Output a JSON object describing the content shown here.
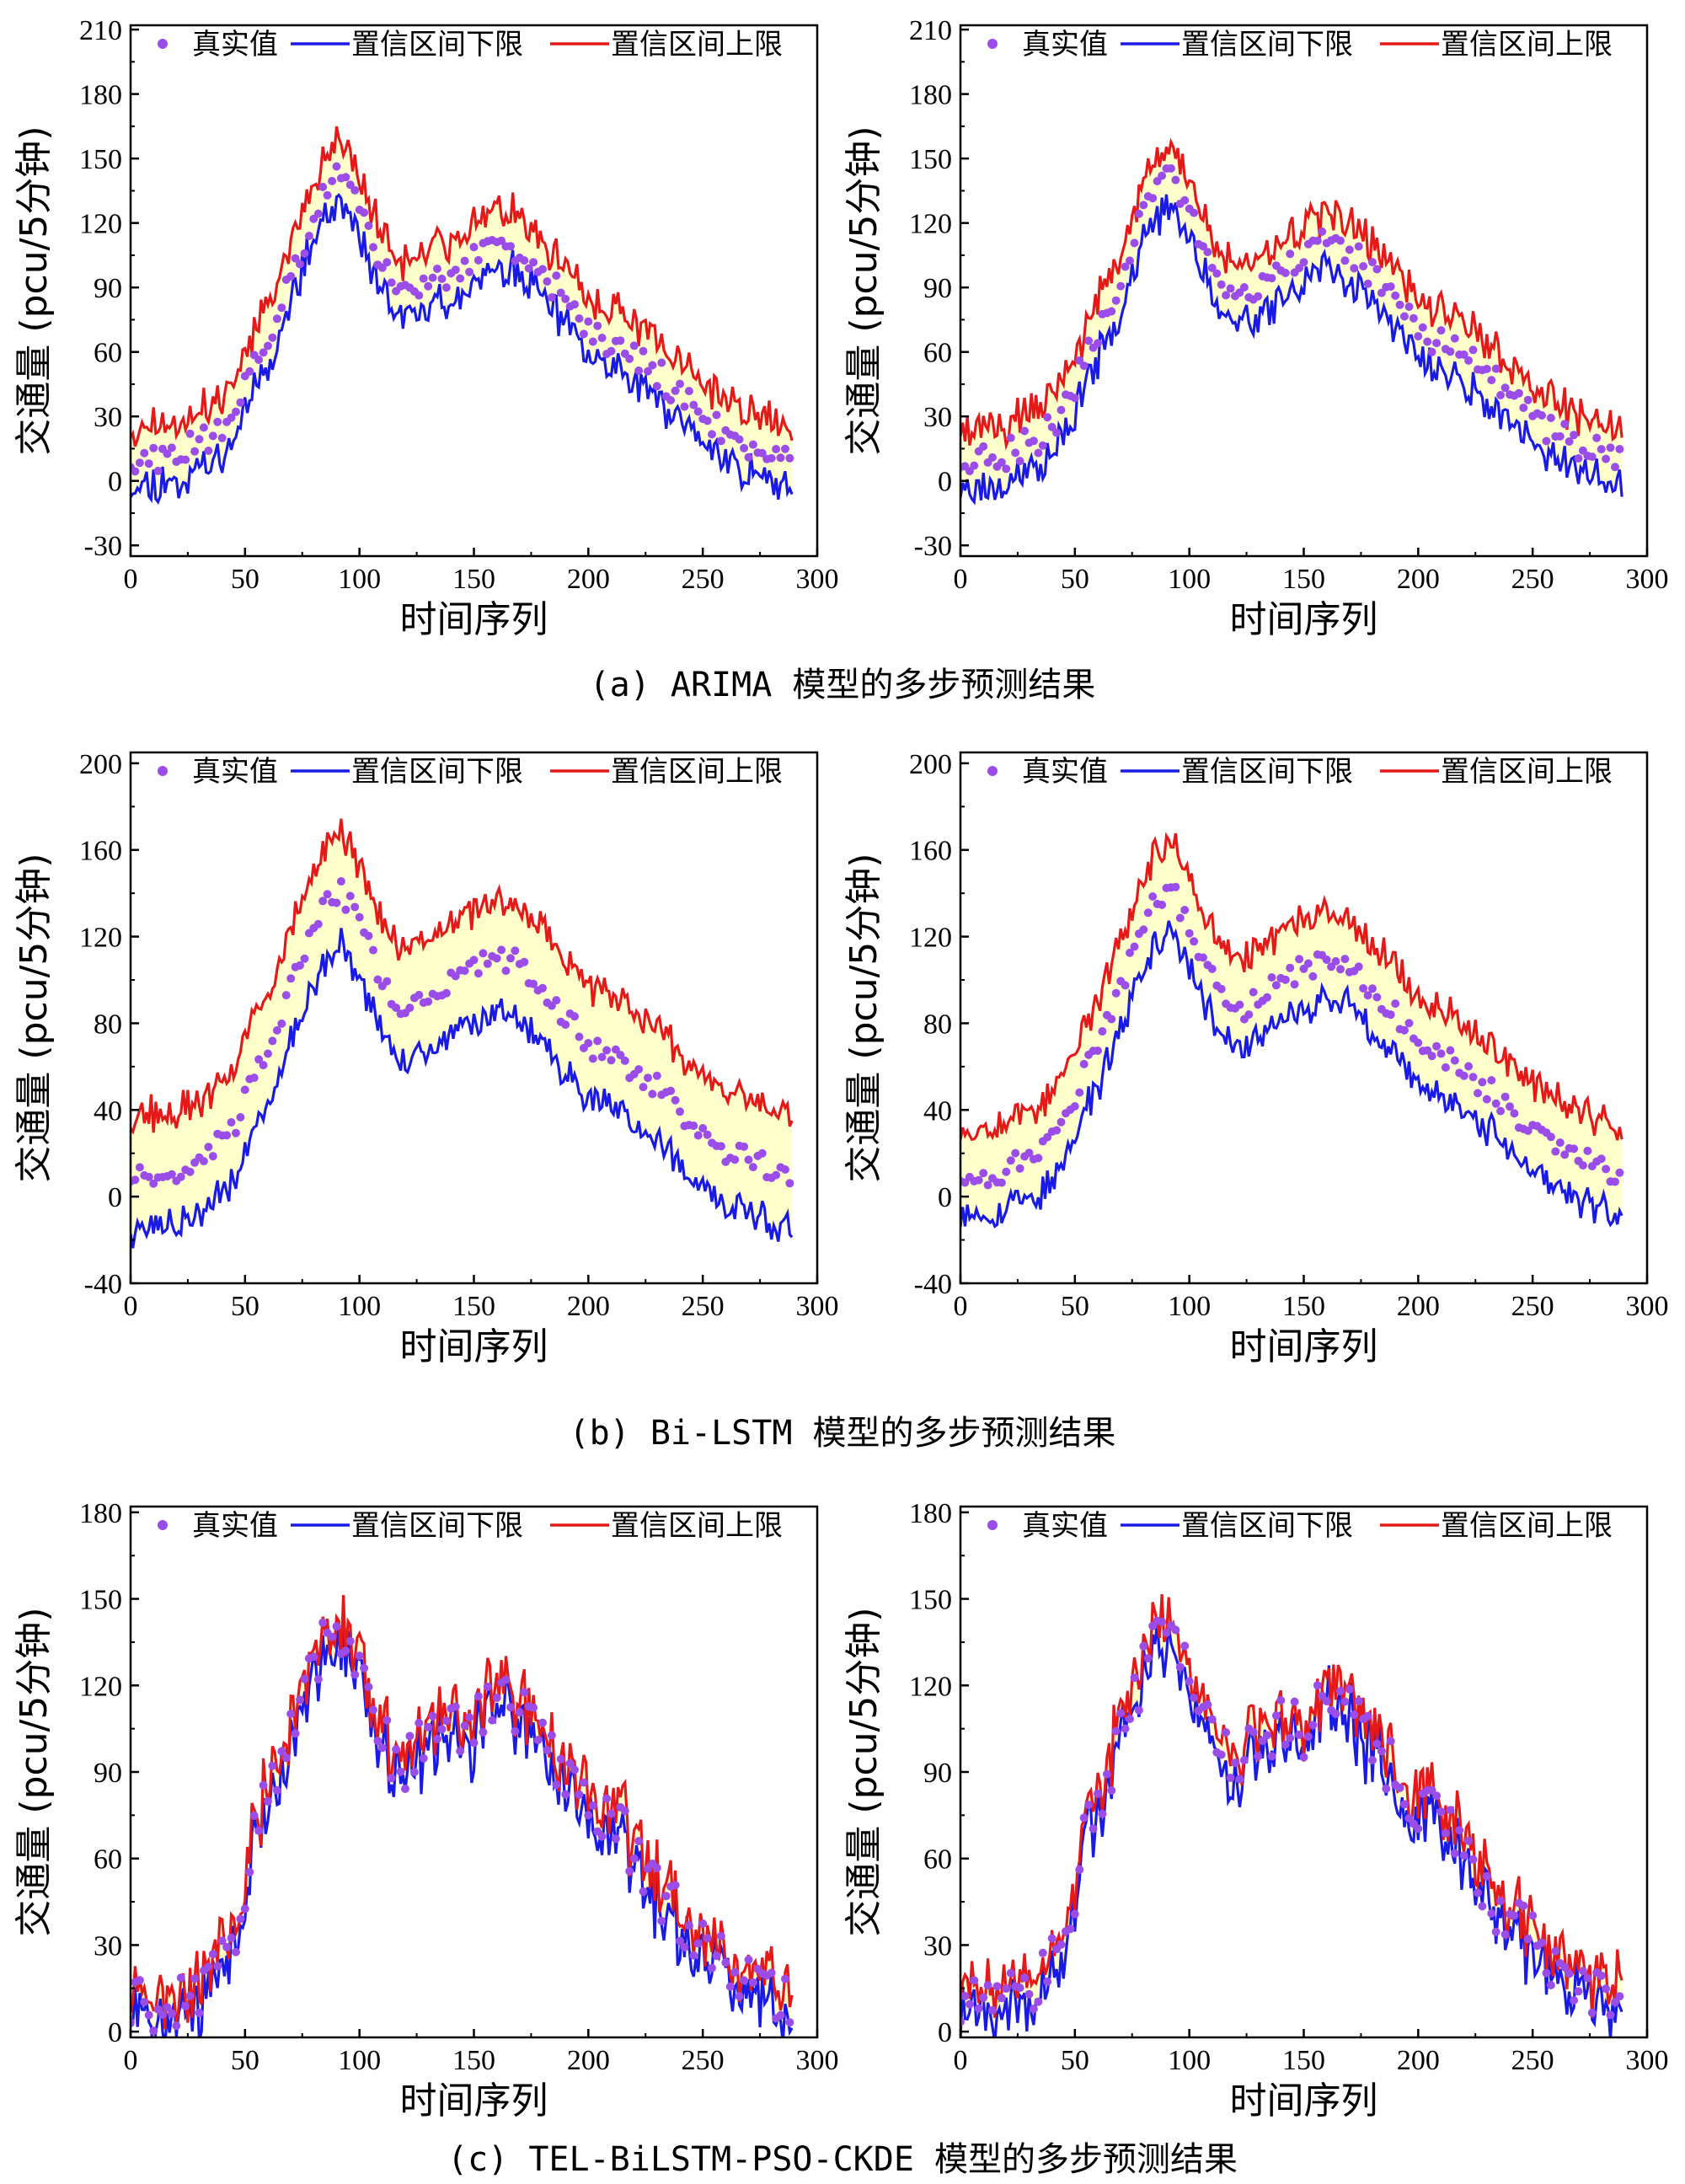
{
  "colors": {
    "actual": "#9b4dea",
    "lower": "#1a1ae6",
    "upper": "#e61919",
    "band": "#ffffcc"
  },
  "legend": {
    "actual": "真实值",
    "lower": "置信区间下限",
    "upper": "置信区间上限"
  },
  "captions": [
    "(a) ARIMA 模型的多步预测结果",
    "(b) Bi-LSTM 模型的多步预测结果",
    "(c) TEL-BiLSTM-PSO-CKDE 模型的多步预测结果"
  ],
  "chart_data": [
    {
      "id": "a-left",
      "type": "line",
      "model": "ARIMA",
      "xlabel": "时间序列",
      "ylabel": "交通量 (pcu/5分钟)",
      "xlim": [
        0,
        300
      ],
      "xticks": [
        0,
        50,
        100,
        150,
        200,
        250,
        300
      ],
      "ylim": [
        -35,
        212
      ],
      "yticks": [
        -30,
        0,
        30,
        60,
        90,
        120,
        150,
        180,
        210
      ],
      "n_points": 290,
      "actual_profile": [
        [
          0,
          10
        ],
        [
          20,
          12
        ],
        [
          35,
          20
        ],
        [
          45,
          32
        ],
        [
          55,
          58
        ],
        [
          65,
          80
        ],
        [
          75,
          110
        ],
        [
          85,
          135
        ],
        [
          92,
          142
        ],
        [
          100,
          125
        ],
        [
          110,
          100
        ],
        [
          120,
          85
        ],
        [
          135,
          95
        ],
        [
          150,
          105
        ],
        [
          160,
          110
        ],
        [
          170,
          108
        ],
        [
          185,
          90
        ],
        [
          200,
          70
        ],
        [
          215,
          62
        ],
        [
          230,
          50
        ],
        [
          245,
          35
        ],
        [
          260,
          22
        ],
        [
          275,
          15
        ],
        [
          290,
          8
        ]
      ],
      "lower_offset": -12,
      "upper_offset": 15,
      "noise": 7,
      "seed": 11,
      "legend": {
        "actual": "真实值",
        "lower": "置信区间下限",
        "upper": "置信区间上限"
      }
    },
    {
      "id": "a-right",
      "type": "line",
      "model": "ARIMA",
      "xlabel": "时间序列",
      "ylabel": "交通量 (pcu/5分钟)",
      "xlim": [
        0,
        300
      ],
      "xticks": [
        0,
        50,
        100,
        150,
        200,
        250,
        300
      ],
      "ylim": [
        -35,
        212
      ],
      "yticks": [
        -30,
        0,
        30,
        60,
        90,
        120,
        150,
        180,
        210
      ],
      "n_points": 290,
      "actual_profile": [
        [
          0,
          10
        ],
        [
          20,
          12
        ],
        [
          35,
          20
        ],
        [
          45,
          32
        ],
        [
          55,
          58
        ],
        [
          65,
          80
        ],
        [
          75,
          110
        ],
        [
          85,
          135
        ],
        [
          92,
          142
        ],
        [
          100,
          125
        ],
        [
          110,
          100
        ],
        [
          120,
          85
        ],
        [
          135,
          95
        ],
        [
          150,
          105
        ],
        [
          160,
          110
        ],
        [
          170,
          108
        ],
        [
          185,
          90
        ],
        [
          200,
          70
        ],
        [
          215,
          62
        ],
        [
          230,
          50
        ],
        [
          245,
          35
        ],
        [
          260,
          22
        ],
        [
          275,
          15
        ],
        [
          290,
          8
        ]
      ],
      "lower_offset": -13,
      "upper_offset": 14,
      "noise": 7,
      "seed": 23,
      "legend": {
        "actual": "真实值",
        "lower": "置信区间下限",
        "upper": "置信区间上限"
      }
    },
    {
      "id": "b-left",
      "type": "line",
      "model": "Bi-LSTM",
      "xlabel": "时间序列",
      "ylabel": "交通量 (pcu/5分钟)",
      "xlim": [
        0,
        300
      ],
      "xticks": [
        0,
        50,
        100,
        150,
        200,
        250,
        300
      ],
      "ylim": [
        -40,
        205
      ],
      "yticks": [
        -40,
        0,
        40,
        80,
        120,
        160,
        200
      ],
      "n_points": 290,
      "actual_profile": [
        [
          0,
          10
        ],
        [
          20,
          12
        ],
        [
          35,
          20
        ],
        [
          45,
          32
        ],
        [
          55,
          58
        ],
        [
          65,
          80
        ],
        [
          75,
          110
        ],
        [
          85,
          135
        ],
        [
          92,
          142
        ],
        [
          100,
          125
        ],
        [
          110,
          100
        ],
        [
          120,
          85
        ],
        [
          135,
          95
        ],
        [
          150,
          105
        ],
        [
          160,
          110
        ],
        [
          170,
          108
        ],
        [
          185,
          90
        ],
        [
          200,
          70
        ],
        [
          215,
          62
        ],
        [
          230,
          50
        ],
        [
          245,
          35
        ],
        [
          260,
          22
        ],
        [
          275,
          15
        ],
        [
          290,
          8
        ]
      ],
      "lower_offset": -25,
      "upper_offset": 27,
      "noise": 6,
      "seed": 37,
      "legend": {
        "actual": "真实值",
        "lower": "置信区间下限",
        "upper": "置信区间上限"
      }
    },
    {
      "id": "b-right",
      "type": "line",
      "model": "Bi-LSTM",
      "xlabel": "时间序列",
      "ylabel": "交通量 (pcu/5分钟)",
      "xlim": [
        0,
        300
      ],
      "xticks": [
        0,
        50,
        100,
        150,
        200,
        250,
        300
      ],
      "ylim": [
        -40,
        205
      ],
      "yticks": [
        -40,
        0,
        40,
        80,
        120,
        160,
        200
      ],
      "n_points": 290,
      "actual_profile": [
        [
          0,
          10
        ],
        [
          20,
          12
        ],
        [
          35,
          20
        ],
        [
          45,
          32
        ],
        [
          55,
          58
        ],
        [
          65,
          80
        ],
        [
          75,
          110
        ],
        [
          85,
          135
        ],
        [
          92,
          142
        ],
        [
          100,
          125
        ],
        [
          110,
          100
        ],
        [
          120,
          85
        ],
        [
          135,
          95
        ],
        [
          150,
          105
        ],
        [
          160,
          110
        ],
        [
          170,
          108
        ],
        [
          185,
          90
        ],
        [
          200,
          70
        ],
        [
          215,
          62
        ],
        [
          230,
          50
        ],
        [
          245,
          35
        ],
        [
          260,
          22
        ],
        [
          275,
          15
        ],
        [
          290,
          8
        ]
      ],
      "lower_offset": -18,
      "upper_offset": 22,
      "noise": 6,
      "seed": 53,
      "legend": {
        "actual": "真实值",
        "lower": "置信区间下限",
        "upper": "置信区间上限"
      }
    },
    {
      "id": "c-left",
      "type": "line",
      "model": "TEL-BiLSTM-PSO-CKDE",
      "xlabel": "时间序列",
      "ylabel": "交通量 (pcu/5分钟)",
      "xlim": [
        0,
        300
      ],
      "xticks": [
        0,
        50,
        100,
        150,
        200,
        250,
        300
      ],
      "ylim": [
        -2,
        182
      ],
      "yticks": [
        0,
        30,
        60,
        90,
        120,
        150,
        180
      ],
      "n_points": 290,
      "actual_profile": [
        [
          0,
          8
        ],
        [
          20,
          10
        ],
        [
          35,
          18
        ],
        [
          45,
          30
        ],
        [
          55,
          70
        ],
        [
          65,
          90
        ],
        [
          75,
          115
        ],
        [
          85,
          135
        ],
        [
          92,
          140
        ],
        [
          100,
          125
        ],
        [
          110,
          100
        ],
        [
          120,
          92
        ],
        [
          135,
          105
        ],
        [
          150,
          105
        ],
        [
          160,
          118
        ],
        [
          170,
          110
        ],
        [
          185,
          95
        ],
        [
          200,
          78
        ],
        [
          215,
          70
        ],
        [
          230,
          48
        ],
        [
          245,
          35
        ],
        [
          260,
          22
        ],
        [
          275,
          15
        ],
        [
          290,
          10
        ]
      ],
      "lower_offset": -4,
      "upper_offset": 4,
      "noise": 10,
      "seed": 71,
      "legend": {
        "actual": "真实值",
        "lower": "置信区间下限",
        "upper": "置信区间上限"
      }
    },
    {
      "id": "c-right",
      "type": "line",
      "model": "TEL-BiLSTM-PSO-CKDE",
      "xlabel": "时间序列",
      "ylabel": "交通量 (pcu/5分钟)",
      "xlim": [
        0,
        300
      ],
      "xticks": [
        0,
        50,
        100,
        150,
        200,
        250,
        300
      ],
      "ylim": [
        -2,
        182
      ],
      "yticks": [
        0,
        30,
        60,
        90,
        120,
        150,
        180
      ],
      "n_points": 290,
      "actual_profile": [
        [
          0,
          8
        ],
        [
          20,
          10
        ],
        [
          35,
          18
        ],
        [
          45,
          30
        ],
        [
          55,
          70
        ],
        [
          65,
          90
        ],
        [
          75,
          115
        ],
        [
          85,
          135
        ],
        [
          92,
          140
        ],
        [
          100,
          125
        ],
        [
          110,
          100
        ],
        [
          120,
          92
        ],
        [
          135,
          105
        ],
        [
          150,
          105
        ],
        [
          160,
          118
        ],
        [
          170,
          110
        ],
        [
          185,
          95
        ],
        [
          200,
          78
        ],
        [
          215,
          70
        ],
        [
          230,
          48
        ],
        [
          245,
          35
        ],
        [
          260,
          22
        ],
        [
          275,
          15
        ],
        [
          290,
          10
        ]
      ],
      "lower_offset": -4,
      "upper_offset": 4,
      "noise": 10,
      "seed": 89,
      "legend": {
        "actual": "真实值",
        "lower": "置信区间下限",
        "upper": "置信区间上限"
      }
    }
  ]
}
